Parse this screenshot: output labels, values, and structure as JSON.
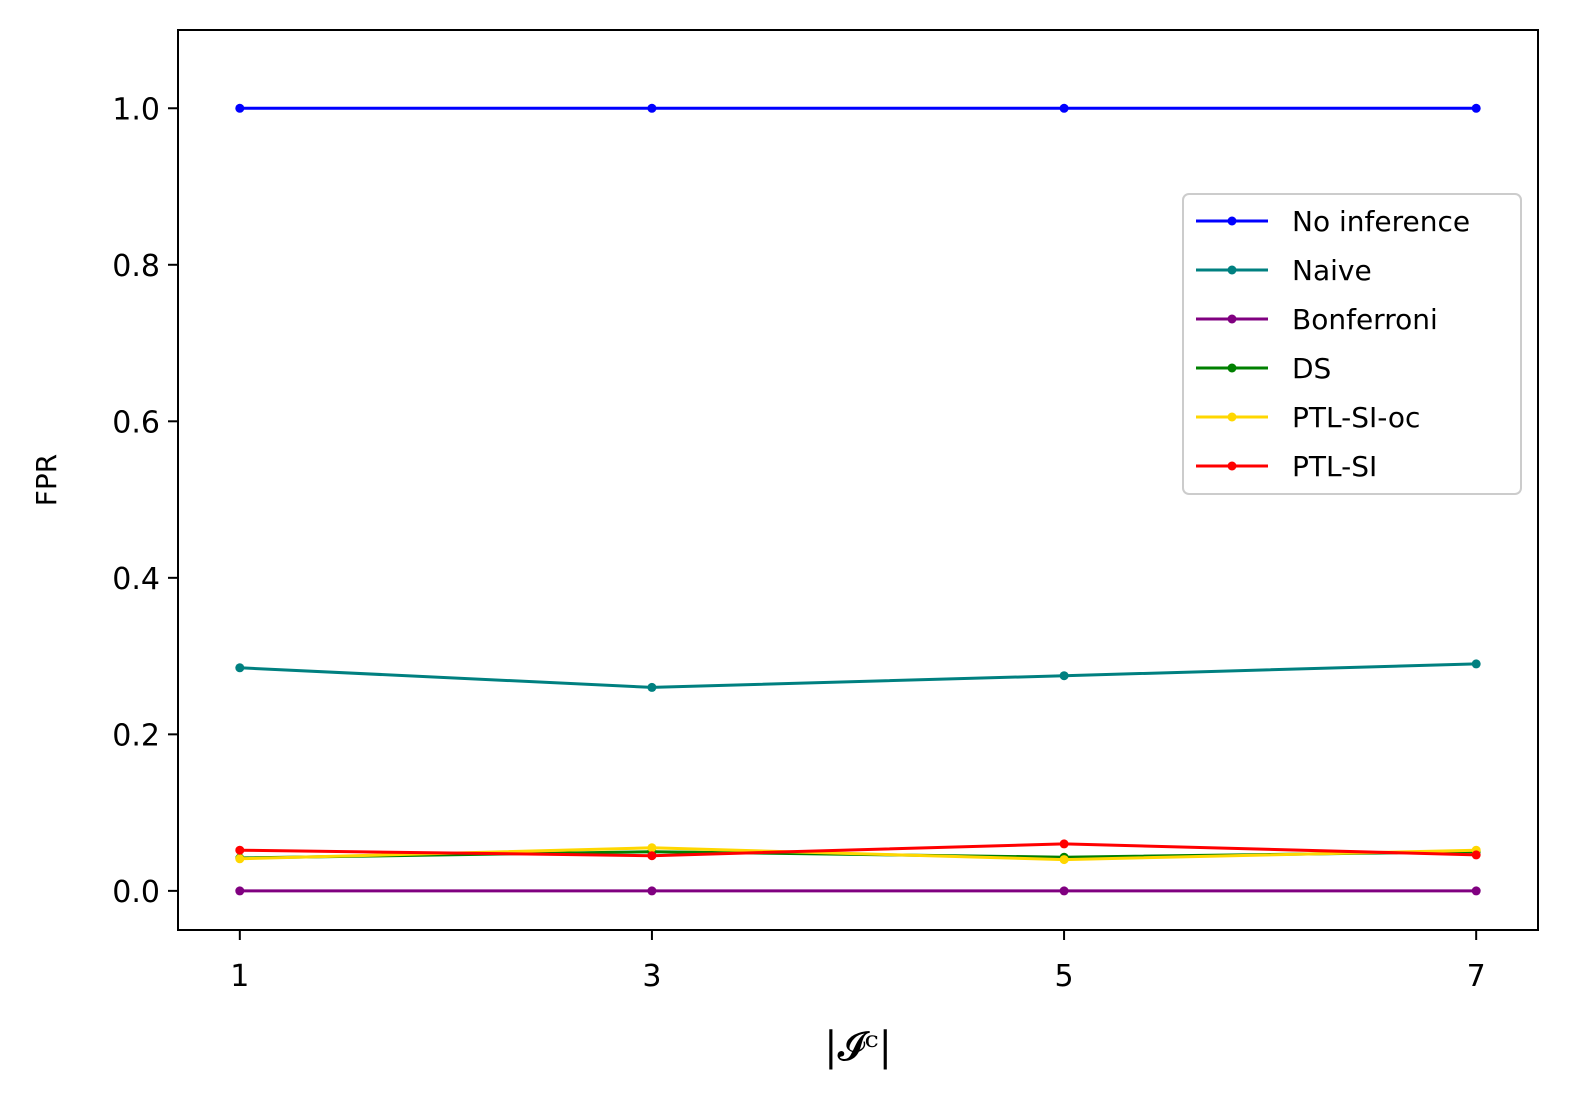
{
  "chart_data": {
    "type": "line",
    "title": "",
    "xlabel": "|𝓘ᶜ|",
    "ylabel": "FPR",
    "x": [
      1,
      3,
      5,
      7
    ],
    "xticks": [
      "1",
      "3",
      "5",
      "7"
    ],
    "yticks": [
      "0.0",
      "0.2",
      "0.4",
      "0.6",
      "0.8",
      "1.0"
    ],
    "xlim": [
      0.7,
      7.3
    ],
    "ylim": [
      -0.05,
      1.1
    ],
    "grid": false,
    "legend_position": "upper-right",
    "series": [
      {
        "name": "No inference",
        "color": "#0000ff",
        "values": [
          1.0,
          1.0,
          1.0,
          1.0
        ]
      },
      {
        "name": "Naive",
        "color": "#008080",
        "values": [
          0.285,
          0.26,
          0.275,
          0.29
        ]
      },
      {
        "name": "Bonferroni",
        "color": "#800080",
        "values": [
          0.0,
          0.0,
          0.0,
          0.0
        ]
      },
      {
        "name": "DS",
        "color": "#008000",
        "values": [
          0.042,
          0.05,
          0.043,
          0.05
        ]
      },
      {
        "name": "PTL-SI-oc",
        "color": "#ffd700",
        "values": [
          0.041,
          0.055,
          0.04,
          0.052
        ]
      },
      {
        "name": "PTL-SI",
        "color": "#ff0000",
        "values": [
          0.052,
          0.045,
          0.06,
          0.046
        ]
      }
    ]
  }
}
